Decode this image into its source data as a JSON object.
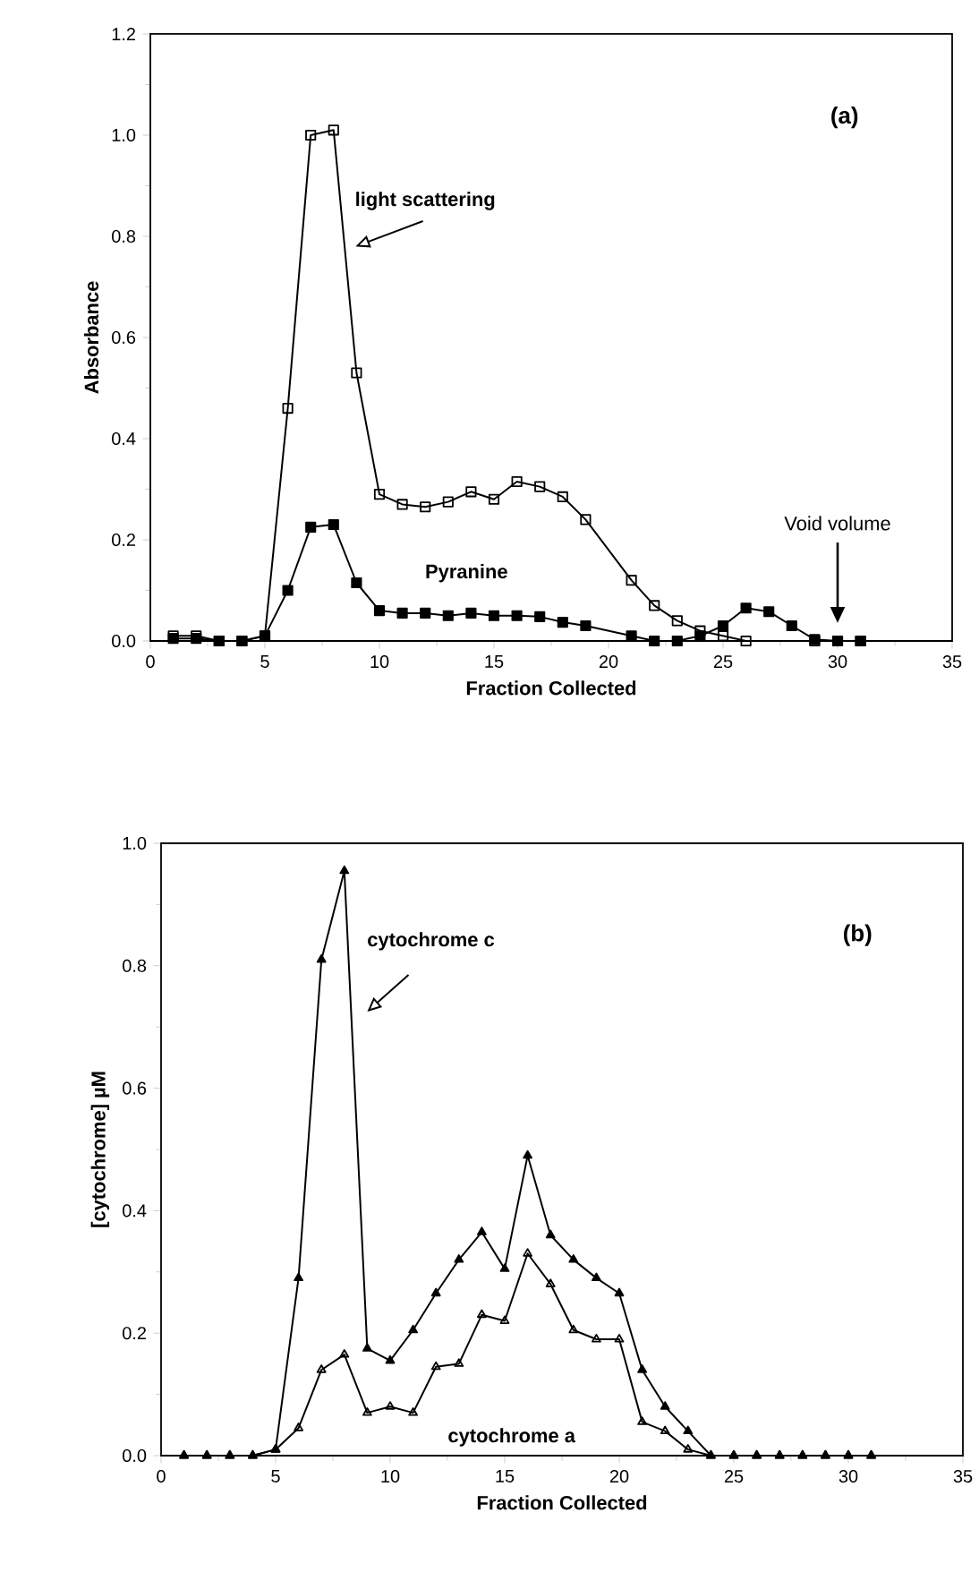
{
  "chart_data": [
    {
      "type": "line",
      "xlabel": "Fraction Collected",
      "ylabel": "Absorbance",
      "annotations": [
        "(a)",
        "Void volume"
      ],
      "xlim": [
        0,
        35
      ],
      "ylim": [
        0,
        1.2
      ],
      "xticks": [
        0,
        5,
        10,
        15,
        20,
        25,
        30,
        35
      ],
      "yticks": [
        {
          "value": 0,
          "label": "0.0"
        },
        {
          "value": 0.2,
          "label": "0.2"
        },
        {
          "value": 0.4,
          "label": "0.4"
        },
        {
          "value": 0.6,
          "label": "0.6"
        },
        {
          "value": 0.8,
          "label": "0.8"
        },
        {
          "value": 1.0,
          "label": "1.0"
        },
        {
          "value": 1.2,
          "label": "1.2"
        }
      ],
      "marker": "square",
      "legend": false,
      "grid": false,
      "series": [
        {
          "name": "light scattering",
          "color": "#000000",
          "x": [
            1,
            2,
            3,
            4,
            5,
            6,
            7,
            8,
            9,
            10,
            11,
            12,
            13,
            14,
            15,
            16,
            17,
            18,
            19,
            21,
            22,
            23,
            24,
            25,
            26,
            29,
            30,
            31
          ],
          "values": [
            0.01,
            0.01,
            0,
            0,
            0.01,
            0.46,
            1.0,
            1.01,
            0.53,
            0.29,
            0.27,
            0.265,
            0.275,
            0.295,
            0.28,
            0.315,
            0.305,
            0.285,
            0.24,
            0.12,
            0.07,
            0.04,
            0.02,
            0.01,
            0,
            0,
            0,
            0
          ]
        },
        {
          "name": "Pyranine",
          "color": "#000000",
          "x": [
            1,
            2,
            3,
            4,
            5,
            6,
            7,
            8,
            9,
            10,
            11,
            12,
            13,
            14,
            15,
            16,
            17,
            18,
            19,
            21,
            22,
            23,
            24,
            25,
            26,
            27,
            28,
            29,
            30,
            31
          ],
          "values": [
            0.005,
            0.005,
            0,
            0,
            0.01,
            0.1,
            0.225,
            0.23,
            0.115,
            0.06,
            0.055,
            0.055,
            0.05,
            0.055,
            0.05,
            0.05,
            0.048,
            0.037,
            0.03,
            0.01,
            0,
            0,
            0.01,
            0.03,
            0.065,
            0.058,
            0.03,
            0.003,
            0,
            0
          ]
        }
      ]
    },
    {
      "type": "line",
      "xlabel": "Fraction Collected",
      "ylabel": "[cytochrome]  µM",
      "annotations": [
        "(b)"
      ],
      "xlim": [
        0,
        35
      ],
      "ylim": [
        0,
        1.0
      ],
      "xticks": [
        0,
        5,
        10,
        15,
        20,
        25,
        30,
        35
      ],
      "yticks": [
        {
          "value": 0,
          "label": "0.0"
        },
        {
          "value": 0.2,
          "label": "0.2"
        },
        {
          "value": 0.4,
          "label": "0.4"
        },
        {
          "value": 0.6,
          "label": "0.6"
        },
        {
          "value": 0.8,
          "label": "0.8"
        },
        {
          "value": 1.0,
          "label": "1.0"
        }
      ],
      "marker": "triangle",
      "legend": false,
      "grid": false,
      "series": [
        {
          "name": "cytochrome  c",
          "color": "#000000",
          "x": [
            1,
            2,
            3,
            4,
            5,
            6,
            7,
            8,
            9,
            10,
            11,
            12,
            13,
            14,
            15,
            16,
            17,
            18,
            19,
            20,
            21,
            22,
            23,
            24,
            25,
            26,
            27,
            28,
            29,
            30,
            31
          ],
          "values": [
            0,
            0,
            0,
            0,
            0.01,
            0.29,
            0.81,
            0.955,
            0.175,
            0.155,
            0.205,
            0.265,
            0.32,
            0.365,
            0.305,
            0.49,
            0.36,
            0.32,
            0.29,
            0.265,
            0.14,
            0.08,
            0.04,
            0,
            0,
            0,
            0,
            0,
            0,
            0,
            0
          ]
        },
        {
          "name": "cytochrome  a",
          "color": "#000000",
          "x": [
            1,
            2,
            3,
            4,
            5,
            6,
            7,
            8,
            9,
            10,
            11,
            12,
            13,
            14,
            15,
            16,
            17,
            18,
            19,
            20,
            21,
            22,
            23,
            24,
            25,
            26,
            27,
            28,
            29,
            30,
            31
          ],
          "values": [
            0,
            0,
            0,
            0,
            0.01,
            0.045,
            0.14,
            0.165,
            0.07,
            0.08,
            0.07,
            0.145,
            0.15,
            0.23,
            0.22,
            0.33,
            0.28,
            0.205,
            0.19,
            0.19,
            0.055,
            0.04,
            0.01,
            0,
            0,
            0,
            0,
            0,
            0,
            0,
            0
          ]
        }
      ]
    }
  ]
}
